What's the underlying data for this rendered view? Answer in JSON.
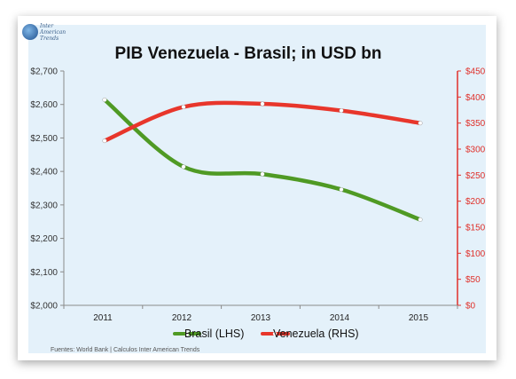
{
  "logo": {
    "icon": "globe-icon",
    "lines": [
      "Inter",
      "American",
      "Trends"
    ]
  },
  "source_note": "Fuentes: World Bank | Calculos Inter American Trends",
  "chart_data": {
    "type": "line",
    "title": "PIB Venezuela - Brasil; in USD bn",
    "categories": [
      "2011",
      "2012",
      "2013",
      "2014",
      "2015"
    ],
    "xlabel": "",
    "ylabel": "",
    "ylim_left": [
      2000,
      2700
    ],
    "ylim_right": [
      0,
      450
    ],
    "yticks_left": [
      "$2,000",
      "$2,100",
      "$2,200",
      "$2,300",
      "$2,400",
      "$2,500",
      "$2,600",
      "$2,700"
    ],
    "yticks_right": [
      "$0",
      "$50",
      "$100",
      "$150",
      "$200",
      "$250",
      "$300",
      "$350",
      "$400",
      "$450"
    ],
    "grid": false,
    "legend_position": "bottom",
    "series": [
      {
        "name": "Brasil (LHS)",
        "axis": "left",
        "color": "#4f9a24",
        "values": [
          2614,
          2414,
          2392,
          2346,
          2256
        ]
      },
      {
        "name": "Venezuela (RHS)",
        "axis": "right",
        "color": "#e8362b",
        "values": [
          316,
          381,
          387,
          374,
          350
        ]
      }
    ]
  }
}
